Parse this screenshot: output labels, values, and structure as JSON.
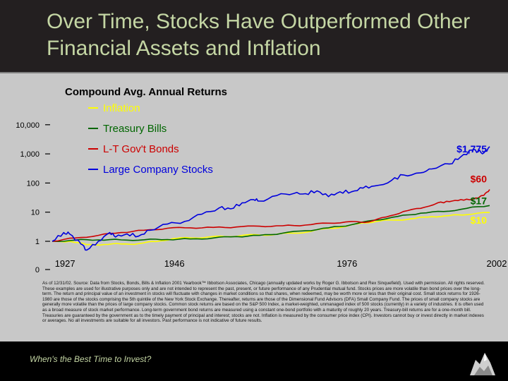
{
  "slide": {
    "title": "Over Time, Stocks Have Outperformed Other Financial Assets and Inflation",
    "footer": "When's the Best Time to Invest?",
    "note": "As of 12/31/02. Source: Data from Stocks, Bonds, Bills & Inflation 2001 Yearbook™ Ibbotson Associates, Chicago (annually updated works by Roger G. Ibbotson and Rex Sinquefield). Used with permission. All rights reserved. These examples are used for illustrative purposes only and are not intended to represent the past, present, or future performance of any Prudential mutual fund. Stocks prices are more volatile than bond prices over the long-term. The return and principal value of an investment in stocks will fluctuate with changes in market conditions so that shares, when redeemed, may be worth more or less than their original cost. Small stock returns for 1926-1980 are those of the stocks comprising the 5th quintile of the New York Stock Exchange. Thereafter, returns are those of the Dimensional Fund Advisors (DFA) Small Company Fund. The prices of small company stocks are generally more volatile than the prices of large company stocks. Common stock returns are based on the S&P 500 Index, a market-weighted, unmanaged index of 500 stocks (currently) in a variety of industries. It is often used as a broad measure of stock market performance. Long-term government bond returns are measured using a constant one-bond portfolio with a maturity of roughly 20 years. Treasury-bill returns are for a one-month bill. Treasuries are guaranteed by the government as to the timely payment of principal and interest; stocks are not. Inflation is measured by the consumer price index (CPI). Investors cannot buy or invest directly in market indexes or averages. No all investments are suitable for all investors. Past performance is not indicative of future results."
  },
  "chart_data": {
    "type": "line",
    "title": "Compound Avg. Annual Returns",
    "xlabel": "",
    "ylabel": "",
    "y_scale": "log",
    "y_ticks": [
      "10,000",
      "1,000",
      "100",
      "10",
      "1",
      "0"
    ],
    "x_ticks": [
      "1927",
      "1946",
      "1976",
      "2002"
    ],
    "legend_position": "top-center",
    "series": [
      {
        "name": "Inflation",
        "color": "#ffff00",
        "end_label": "$10",
        "points": [
          [
            1926,
            1.0
          ],
          [
            1929,
            1.0
          ],
          [
            1932,
            0.77
          ],
          [
            1935,
            0.78
          ],
          [
            1938,
            0.81
          ],
          [
            1941,
            0.83
          ],
          [
            1944,
            0.98
          ],
          [
            1947,
            1.24
          ],
          [
            1950,
            1.3
          ],
          [
            1953,
            1.4
          ],
          [
            1956,
            1.45
          ],
          [
            1959,
            1.6
          ],
          [
            1962,
            1.65
          ],
          [
            1965,
            1.75
          ],
          [
            1968,
            1.9
          ],
          [
            1971,
            2.2
          ],
          [
            1974,
            2.8
          ],
          [
            1977,
            3.2
          ],
          [
            1980,
            4.3
          ],
          [
            1983,
            5.0
          ],
          [
            1986,
            5.4
          ],
          [
            1989,
            6.1
          ],
          [
            1992,
            7.0
          ],
          [
            1995,
            7.6
          ],
          [
            1998,
            8.2
          ],
          [
            2002,
            9.7
          ]
        ]
      },
      {
        "name": "Treasury Bills",
        "color": "#006600",
        "end_label": "$17",
        "points": [
          [
            1926,
            1.0
          ],
          [
            1930,
            1.1
          ],
          [
            1934,
            1.12
          ],
          [
            1938,
            1.12
          ],
          [
            1942,
            1.13
          ],
          [
            1946,
            1.15
          ],
          [
            1950,
            1.2
          ],
          [
            1954,
            1.3
          ],
          [
            1958,
            1.45
          ],
          [
            1962,
            1.6
          ],
          [
            1966,
            1.9
          ],
          [
            1970,
            2.3
          ],
          [
            1974,
            2.9
          ],
          [
            1978,
            3.7
          ],
          [
            1982,
            5.3
          ],
          [
            1986,
            7.1
          ],
          [
            1990,
            9.2
          ],
          [
            1994,
            10.5
          ],
          [
            1998,
            13.5
          ],
          [
            2002,
            16.9
          ]
        ]
      },
      {
        "name": "L-T Gov't Bonds",
        "color": "#cc0000",
        "end_label": "$60",
        "points": [
          [
            1926,
            1.0
          ],
          [
            1930,
            1.3
          ],
          [
            1934,
            1.6
          ],
          [
            1938,
            2.0
          ],
          [
            1942,
            2.4
          ],
          [
            1946,
            2.8
          ],
          [
            1950,
            2.9
          ],
          [
            1954,
            3.0
          ],
          [
            1958,
            3.1
          ],
          [
            1962,
            3.3
          ],
          [
            1966,
            3.4
          ],
          [
            1970,
            3.6
          ],
          [
            1974,
            4.2
          ],
          [
            1978,
            4.8
          ],
          [
            1981,
            4.6
          ],
          [
            1984,
            6.8
          ],
          [
            1987,
            10.5
          ],
          [
            1990,
            13.5
          ],
          [
            1993,
            21
          ],
          [
            1995,
            23
          ],
          [
            1997,
            27
          ],
          [
            1999,
            27
          ],
          [
            2001,
            38
          ],
          [
            2002,
            60
          ]
        ]
      },
      {
        "name": "Large Company Stocks",
        "color": "#0000dd",
        "end_label": "$1,775",
        "points": [
          [
            1926,
            1.0
          ],
          [
            1928,
            2.0
          ],
          [
            1929,
            1.8
          ],
          [
            1931,
            0.8
          ],
          [
            1932,
            0.5
          ],
          [
            1934,
            1.0
          ],
          [
            1936,
            2.0
          ],
          [
            1937,
            1.4
          ],
          [
            1939,
            1.8
          ],
          [
            1941,
            1.5
          ],
          [
            1943,
            2.4
          ],
          [
            1946,
            3.9
          ],
          [
            1949,
            4.8
          ],
          [
            1952,
            8.5
          ],
          [
            1955,
            14
          ],
          [
            1957,
            13
          ],
          [
            1959,
            21
          ],
          [
            1961,
            27
          ],
          [
            1962,
            24
          ],
          [
            1965,
            37
          ],
          [
            1968,
            44
          ],
          [
            1970,
            43
          ],
          [
            1972,
            54
          ],
          [
            1974,
            34
          ],
          [
            1976,
            50
          ],
          [
            1978,
            50
          ],
          [
            1980,
            67
          ],
          [
            1982,
            79
          ],
          [
            1985,
            125
          ],
          [
            1987,
            190
          ],
          [
            1990,
            225
          ],
          [
            1992,
            305
          ],
          [
            1995,
            450
          ],
          [
            1997,
            800
          ],
          [
            1999,
            1350
          ],
          [
            2000,
            1220
          ],
          [
            2001,
            1080
          ],
          [
            2002,
            1775
          ]
        ]
      }
    ]
  }
}
